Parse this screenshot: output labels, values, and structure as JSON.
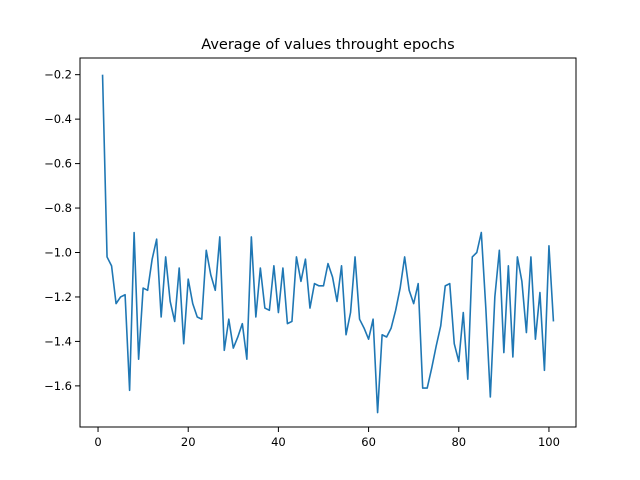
{
  "chart_data": {
    "type": "line",
    "title": "Average of values throught epochs",
    "xlabel": "",
    "ylabel": "",
    "xlim": [
      -4,
      106
    ],
    "ylim": [
      -1.785,
      -0.125
    ],
    "xticks": [
      0,
      20,
      40,
      60,
      80,
      100
    ],
    "yticks": [
      -1.6,
      -1.4,
      -1.2,
      -1.0,
      -0.8,
      -0.6,
      -0.4,
      -0.2
    ],
    "xtick_labels": [
      "0",
      "20",
      "40",
      "60",
      "80",
      "100"
    ],
    "ytick_labels": [
      "−1.6",
      "−1.4",
      "−1.2",
      "−1.0",
      "−0.8",
      "−0.6",
      "−0.4",
      "−0.2"
    ],
    "grid": false,
    "legend": "none",
    "series": [
      {
        "color": "#1f77b4",
        "x": [
          1,
          2,
          3,
          4,
          5,
          6,
          7,
          8,
          9,
          10,
          11,
          12,
          13,
          14,
          15,
          16,
          17,
          18,
          19,
          20,
          21,
          22,
          23,
          24,
          25,
          26,
          27,
          28,
          29,
          30,
          31,
          32,
          33,
          34,
          35,
          36,
          37,
          38,
          39,
          40,
          41,
          42,
          43,
          44,
          45,
          46,
          47,
          48,
          49,
          50,
          51,
          52,
          53,
          54,
          55,
          56,
          57,
          58,
          59,
          60,
          61,
          62,
          63,
          64,
          65,
          66,
          67,
          68,
          69,
          70,
          71,
          72,
          73,
          74,
          75,
          76,
          77,
          78,
          79,
          80,
          81,
          82,
          83,
          84,
          85,
          86,
          87,
          88,
          89,
          90,
          91,
          92,
          93,
          94,
          95,
          96,
          97,
          98,
          99,
          100,
          101
        ],
        "y": [
          -0.2,
          -1.02,
          -1.06,
          -1.23,
          -1.2,
          -1.19,
          -1.62,
          -0.91,
          -1.48,
          -1.16,
          -1.17,
          -1.03,
          -0.94,
          -1.29,
          -1.02,
          -1.22,
          -1.31,
          -1.07,
          -1.41,
          -1.12,
          -1.23,
          -1.29,
          -1.3,
          -0.99,
          -1.1,
          -1.17,
          -0.93,
          -1.44,
          -1.3,
          -1.43,
          -1.38,
          -1.32,
          -1.48,
          -0.93,
          -1.29,
          -1.07,
          -1.25,
          -1.26,
          -1.06,
          -1.27,
          -1.07,
          -1.32,
          -1.31,
          -1.02,
          -1.13,
          -1.03,
          -1.25,
          -1.14,
          -1.15,
          -1.15,
          -1.05,
          -1.11,
          -1.22,
          -1.06,
          -1.37,
          -1.27,
          -1.02,
          -1.3,
          -1.34,
          -1.39,
          -1.3,
          -1.72,
          -1.37,
          -1.38,
          -1.34,
          -1.26,
          -1.16,
          -1.02,
          -1.17,
          -1.23,
          -1.14,
          -1.61,
          -1.61,
          -1.52,
          -1.42,
          -1.33,
          -1.15,
          -1.14,
          -1.41,
          -1.49,
          -1.27,
          -1.57,
          -1.02,
          -1.0,
          -0.91,
          -1.25,
          -1.65,
          -1.2,
          -0.99,
          -1.45,
          -1.06,
          -1.47,
          -1.02,
          -1.13,
          -1.36,
          -1.02,
          -1.39,
          -1.18,
          -1.53,
          -0.97,
          -1.31
        ]
      }
    ]
  }
}
